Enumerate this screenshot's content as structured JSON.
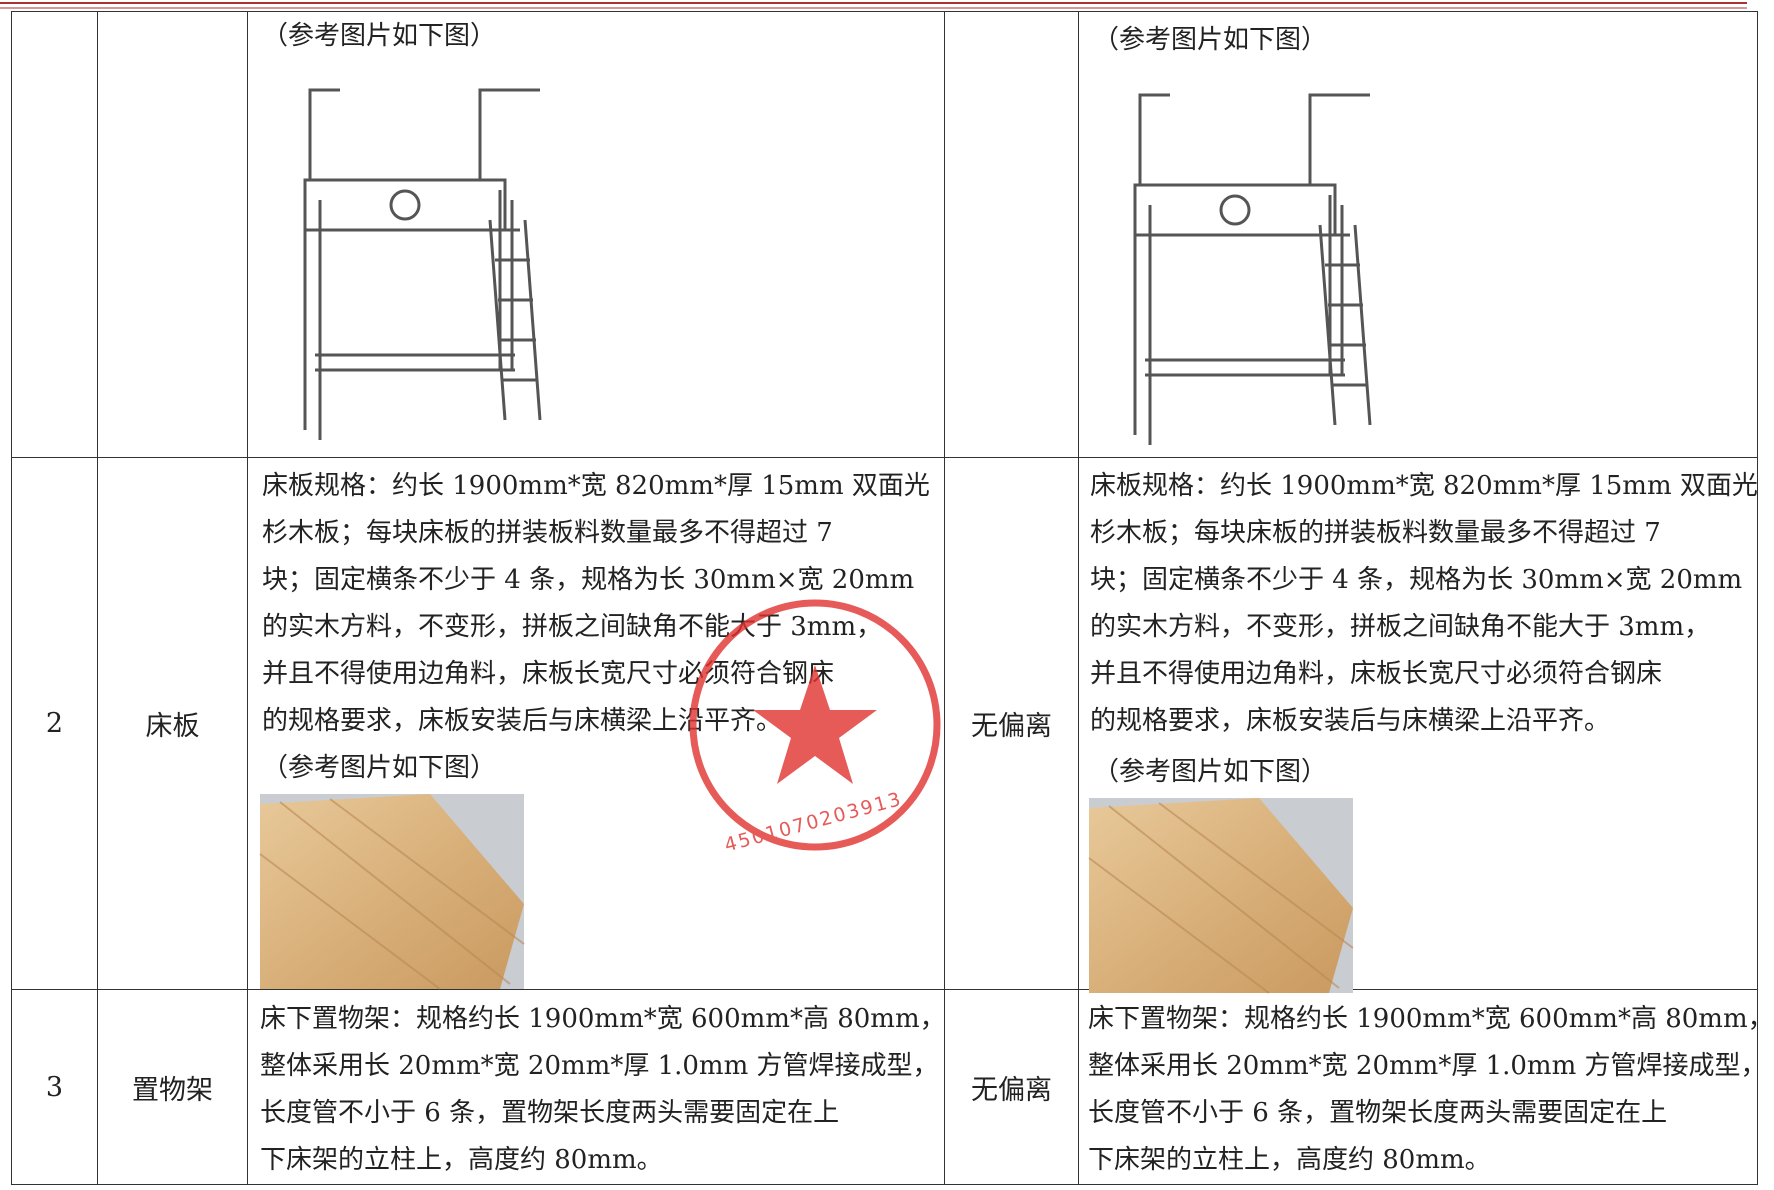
{
  "table": {
    "rows": [
      {
        "spec_note": "（参考图片如下图）",
        "response_note": "（参考图片如下图）"
      },
      {
        "no": "2",
        "item": "床板",
        "spec": [
          "床板规格：约长 1900mm*宽 820mm*厚 15mm 双面光",
          "杉木板；每块床板的拼装板料数量最多不得超过 7",
          "块；固定横条不少于 4 条，规格为长 30mm×宽 20mm",
          "的实木方料，不变形，拼板之间缺角不能大于 3mm，",
          "并且不得使用边角料，床板长宽尺寸必须符合钢床",
          "的规格要求，床板安装后与床横梁上沿平齐。"
        ],
        "spec_note": "（参考图片如下图）",
        "deviation": "无偏离",
        "response": [
          "床板规格：约长 1900mm*宽 820mm*厚 15mm 双面光",
          "杉木板；每块床板的拼装板料数量最多不得超过 7",
          "块；固定横条不少于 4 条，规格为长 30mm×宽 20mm",
          "的实木方料，不变形，拼板之间缺角不能大于 3mm，",
          "并且不得使用边角料，床板长宽尺寸必须符合钢床",
          "的规格要求，床板安装后与床横梁上沿平齐。"
        ],
        "response_note": "（参考图片如下图）"
      },
      {
        "no": "3",
        "item": "置物架",
        "spec": [
          "床下置物架：规格约长 1900mm*宽 600mm*高 80mm，",
          "整体采用长 20mm*宽 20mm*厚 1.0mm 方管焊接成型，",
          "长度管不小于 6 条，置物架长度两头需要固定在上",
          "下床架的立柱上，高度约 80mm。"
        ],
        "deviation": "无偏离",
        "response": [
          "床下置物架：规格约长 1900mm*宽 600mm*高 80mm，",
          "整体采用长 20mm*宽 20mm*厚 1.0mm 方管焊接成型，",
          "长度管不小于 6 条，置物架长度两头需要固定在上",
          "下床架的立柱上，高度约 80mm。"
        ]
      }
    ]
  },
  "stamp": {
    "code": "4501070203913"
  }
}
